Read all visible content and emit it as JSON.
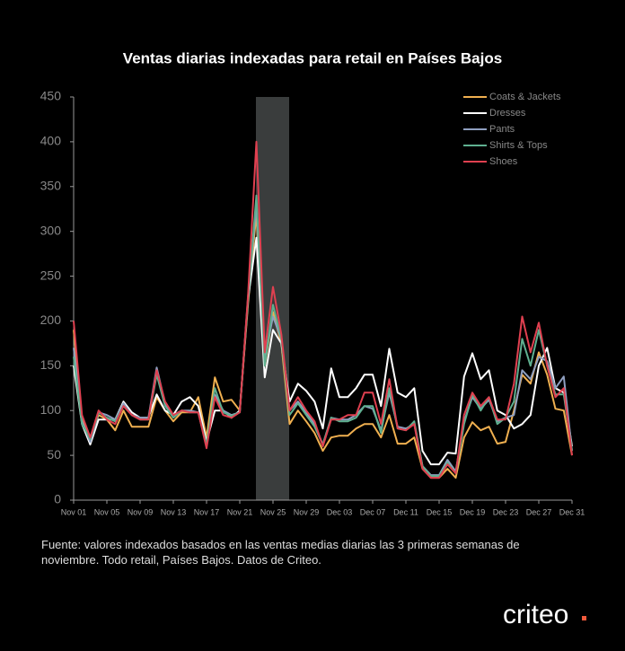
{
  "chart_data": {
    "type": "line",
    "title": "Ventas diarias indexadas para retail en Países Bajos",
    "note": "Fuente: valores indexados basados en las ventas medias diarias las 3 primeras semanas de noviembre. Todo retail, Países Bajos. Datos de Criteo.",
    "logo": "criteo",
    "categories": [
      "Nov 01",
      null,
      null,
      null,
      "Nov 05",
      null,
      null,
      null,
      "Nov 09",
      null,
      null,
      null,
      "Nov 13",
      null,
      null,
      null,
      "Nov 17",
      null,
      null,
      null,
      "Nov 21",
      null,
      null,
      null,
      "Nov 25",
      null,
      null,
      null,
      "Nov 29",
      null,
      null,
      null,
      "Dec 03",
      null,
      null,
      null,
      "Dec 07",
      null,
      null,
      null,
      "Dec 11",
      null,
      null,
      null,
      "Dec 15",
      null,
      null,
      null,
      "Dec 19",
      null,
      null,
      null,
      "Dec 23",
      null,
      null,
      null,
      "Dec 27",
      null,
      null,
      null,
      "Dec 31"
    ],
    "ylim": [
      0,
      450
    ],
    "yticks": [
      0,
      50,
      100,
      150,
      200,
      250,
      300,
      350,
      400,
      450
    ],
    "grid": false,
    "legend": "upper right",
    "series": [
      {
        "name": "Coats & Jackets",
        "color": "#f0b050",
        "values": [
          190,
          90,
          70,
          95,
          90,
          78,
          100,
          82,
          82,
          82,
          115,
          100,
          88,
          98,
          98,
          115,
          70,
          137,
          110,
          112,
          100,
          220,
          320,
          150,
          210,
          175,
          85,
          100,
          88,
          75,
          55,
          70,
          72,
          72,
          80,
          85,
          85,
          70,
          95,
          63,
          63,
          70,
          35,
          25,
          25,
          35,
          25,
          70,
          87,
          78,
          82,
          63,
          65,
          100,
          140,
          130,
          165,
          140,
          102,
          100,
          50
        ]
      },
      {
        "name": "Dresses",
        "color": "#ffffff",
        "values": [
          150,
          85,
          62,
          90,
          90,
          90,
          110,
          98,
          92,
          92,
          118,
          100,
          95,
          110,
          115,
          105,
          65,
          100,
          100,
          92,
          100,
          225,
          293,
          137,
          190,
          175,
          110,
          130,
          122,
          110,
          80,
          147,
          115,
          115,
          125,
          140,
          140,
          105,
          169,
          120,
          115,
          125,
          55,
          40,
          40,
          53,
          52,
          138,
          164,
          135,
          145,
          100,
          95,
          80,
          85,
          95,
          150,
          170,
          125,
          120,
          60
        ]
      },
      {
        "name": "Pants",
        "color": "#8f9fc0",
        "values": [
          170,
          88,
          65,
          98,
          95,
          90,
          108,
          95,
          92,
          92,
          148,
          108,
          95,
          100,
          100,
          98,
          60,
          118,
          100,
          95,
          98,
          228,
          330,
          160,
          205,
          180,
          100,
          110,
          98,
          85,
          62,
          92,
          90,
          90,
          95,
          105,
          102,
          78,
          120,
          82,
          80,
          85,
          38,
          28,
          28,
          45,
          32,
          88,
          115,
          102,
          112,
          88,
          92,
          95,
          145,
          135,
          160,
          155,
          125,
          138,
          55
        ]
      },
      {
        "name": "Shirts & Tops",
        "color": "#5fb090",
        "values": [
          160,
          85,
          68,
          98,
          92,
          88,
          105,
          95,
          90,
          90,
          140,
          105,
          92,
          100,
          98,
          98,
          62,
          125,
          98,
          94,
          98,
          225,
          340,
          150,
          218,
          180,
          95,
          108,
          95,
          82,
          62,
          92,
          88,
          88,
          92,
          105,
          105,
          75,
          125,
          80,
          78,
          88,
          38,
          27,
          27,
          42,
          30,
          85,
          118,
          100,
          115,
          85,
          92,
          110,
          180,
          150,
          190,
          150,
          118,
          118,
          55
        ]
      },
      {
        "name": "Shoes",
        "color": "#e04050",
        "values": [
          200,
          95,
          70,
          100,
          90,
          85,
          105,
          95,
          90,
          90,
          145,
          110,
          95,
          100,
          98,
          98,
          58,
          115,
          95,
          92,
          98,
          230,
          400,
          165,
          238,
          185,
          100,
          115,
          100,
          88,
          60,
          90,
          90,
          95,
          95,
          120,
          120,
          85,
          135,
          80,
          78,
          85,
          35,
          25,
          25,
          40,
          30,
          95,
          120,
          105,
          115,
          90,
          90,
          130,
          205,
          165,
          198,
          150,
          115,
          125,
          50
        ]
      }
    ]
  }
}
